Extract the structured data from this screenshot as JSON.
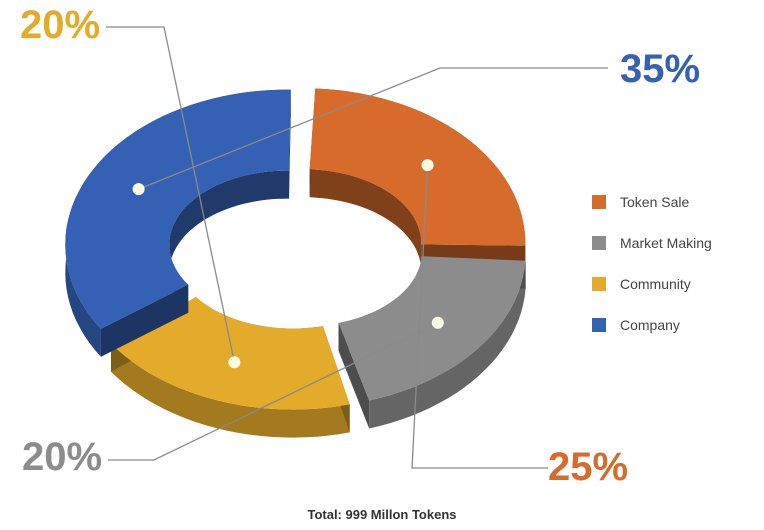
{
  "chart_data": {
    "type": "pie",
    "style": "3d-donut",
    "categories": [
      "Token Sale",
      "Market Making",
      "Community",
      "Company"
    ],
    "values": [
      25,
      20,
      20,
      35
    ],
    "labels": [
      "25%",
      "20%",
      "20%",
      "35%"
    ],
    "colors": [
      "#d66b2c",
      "#8c8c8c",
      "#e3ab29",
      "#3461b3"
    ],
    "legend": {
      "placement": "right",
      "entries": [
        "Token Sale",
        "Market Making",
        "Community",
        "Company"
      ]
    },
    "footnote": "Total: 999 Millon Tokens"
  }
}
